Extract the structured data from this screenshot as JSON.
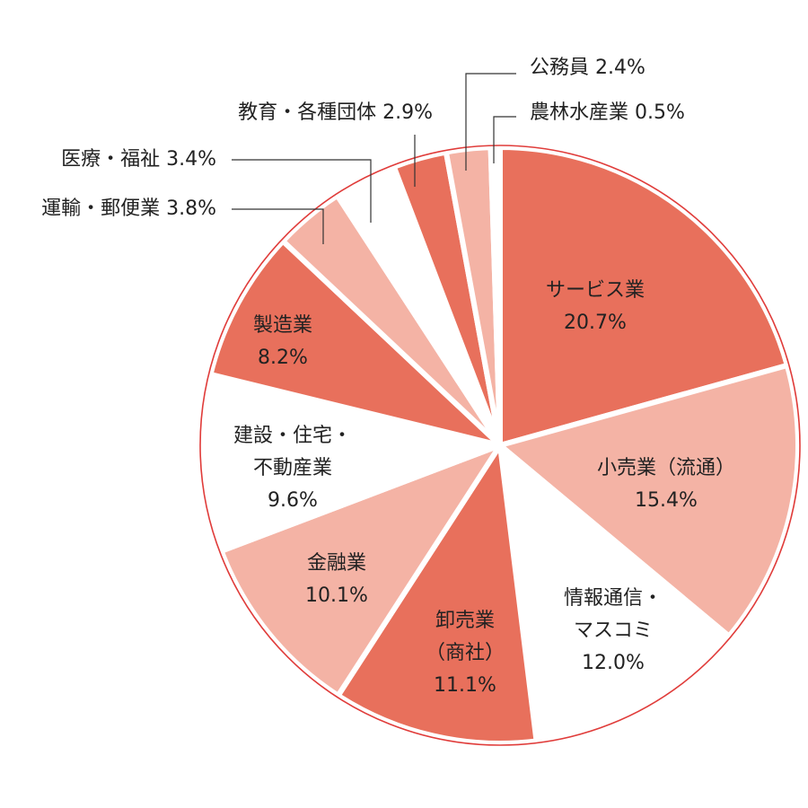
{
  "chart_data": {
    "type": "pie",
    "title": "",
    "direction": "clockwise-from-top",
    "colors": {
      "dark": "#E8705C",
      "light": "#F4B3A5",
      "white": "#FFFFFF",
      "outline": "#E03C3A"
    },
    "slices": [
      {
        "label": "サービス業",
        "lines": [
          "サービス業",
          "20.7%"
        ],
        "value": 20.7,
        "value_text": "20.7%",
        "color": "dark"
      },
      {
        "label": "小売業（流通）",
        "lines": [
          "小売業（流通）",
          "15.4%"
        ],
        "value": 15.4,
        "value_text": "15.4%",
        "color": "light"
      },
      {
        "label": "情報通信・マスコミ",
        "lines": [
          "情報通信・",
          "マスコミ",
          "12.0%"
        ],
        "value": 12.0,
        "value_text": "12.0%",
        "color": "white"
      },
      {
        "label": "卸売業（商社）",
        "lines": [
          "卸売業",
          "（商社）",
          "11.1%"
        ],
        "value": 11.1,
        "value_text": "11.1%",
        "color": "dark"
      },
      {
        "label": "金融業",
        "lines": [
          "金融業",
          "10.1%"
        ],
        "value": 10.1,
        "value_text": "10.1%",
        "color": "light"
      },
      {
        "label": "建設・住宅・不動産業",
        "lines": [
          "建設・住宅・",
          "不動産業",
          "9.6%"
        ],
        "value": 9.6,
        "value_text": "9.6%",
        "color": "white"
      },
      {
        "label": "製造業",
        "lines": [
          "製造業",
          "8.2%"
        ],
        "value": 8.2,
        "value_text": "8.2%",
        "color": "dark"
      },
      {
        "label": "運輸・郵便業",
        "lines": [
          "運輸・郵便業 3.8%"
        ],
        "value": 3.8,
        "value_text": "3.8%",
        "color": "light",
        "external": true
      },
      {
        "label": "医療・福祉",
        "lines": [
          "医療・福祉 3.4%"
        ],
        "value": 3.4,
        "value_text": "3.4%",
        "color": "white",
        "external": true
      },
      {
        "label": "教育・各種団体",
        "lines": [
          "教育・各種団体 2.9%"
        ],
        "value": 2.9,
        "value_text": "2.9%",
        "color": "dark",
        "external": true
      },
      {
        "label": "公務員",
        "lines": [
          "公務員 2.4%"
        ],
        "value": 2.4,
        "value_text": "2.4%",
        "color": "light",
        "external": true
      },
      {
        "label": "農林水産業",
        "lines": [
          "農林水産業 0.5%"
        ],
        "value": 0.5,
        "value_text": "0.5%",
        "color": "white",
        "external": true
      }
    ]
  }
}
